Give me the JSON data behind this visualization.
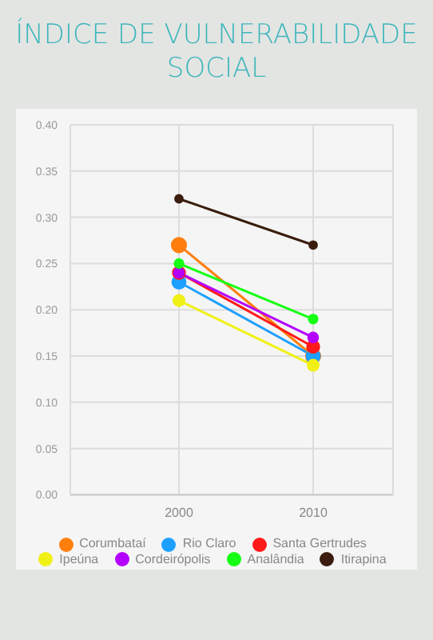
{
  "chart_data": {
    "type": "line",
    "title": "ÍNDICE DE VULNERABILIDADE SOCIAL",
    "categories": [
      "2000",
      "2010"
    ],
    "series": [
      {
        "name": "Corumbataí",
        "color": "#ff7f0e",
        "values": [
          0.27,
          0.15
        ]
      },
      {
        "name": "Rio Claro",
        "color": "#1ea0ff",
        "values": [
          0.23,
          0.15
        ]
      },
      {
        "name": "Santa Gertrudes",
        "color": "#ff1a1a",
        "values": [
          0.24,
          0.16
        ]
      },
      {
        "name": "Ipeúna",
        "color": "#f0f014",
        "values": [
          0.21,
          0.14
        ]
      },
      {
        "name": "Cordeirópolis",
        "color": "#b400ff",
        "values": [
          0.24,
          0.17
        ]
      },
      {
        "name": "Analândia",
        "color": "#14ff14",
        "values": [
          0.25,
          0.19
        ]
      },
      {
        "name": "Itirapina",
        "color": "#3a1d0e",
        "values": [
          0.32,
          0.27
        ]
      }
    ],
    "ylim": [
      0,
      0.4
    ],
    "yticks": [
      {
        "value": 0,
        "label": "0.00"
      },
      {
        "value": 0.05,
        "label": "0.05"
      },
      {
        "value": 0.1,
        "label": "0.10"
      },
      {
        "value": 0.15,
        "label": "0.15"
      },
      {
        "value": 0.2,
        "label": "0.20"
      },
      {
        "value": 0.25,
        "label": "0.25"
      },
      {
        "value": 0.3,
        "label": "0.30"
      },
      {
        "value": 0.35,
        "label": "0.35"
      },
      {
        "value": 0.4,
        "label": "0.40"
      }
    ],
    "grid": true,
    "legend": "bottom",
    "marker": "circle",
    "line_style": "solid"
  }
}
